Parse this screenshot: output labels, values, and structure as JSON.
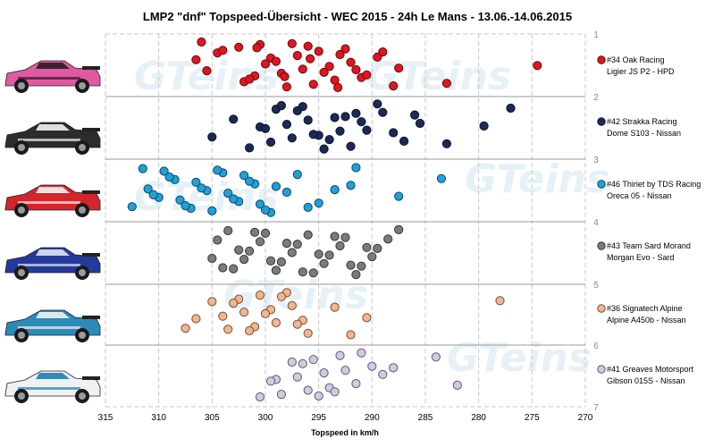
{
  "chart_data": {
    "type": "scatter",
    "title": "LMP2 \"dnf\" Topspeed-Übersicht  -  WEC 2015  -  24h Le Mans  -  13.06.-14.06.2015",
    "xlabel": "Topspeed in km/h",
    "xlim": [
      315,
      270
    ],
    "x_ticks": [
      315,
      310,
      305,
      300,
      295,
      290,
      285,
      280,
      275,
      270
    ],
    "row_ticks": [
      "1",
      "2",
      "3",
      "4",
      "5",
      "6",
      "7"
    ],
    "grid": "horizontal and vertical",
    "legend_position": "right",
    "watermark": "GTeins",
    "series": [
      {
        "name": "#34 Oak Racing",
        "car": "Ligier JS P2 - HPD",
        "color": "#e0161f",
        "row": 1,
        "x": [
          302.5,
          301.0,
          299.5,
          298.0,
          296.5,
          295.0,
          293.5,
          292.0,
          300.5,
          298.5,
          297.0,
          295.5,
          294.0,
          292.5,
          291.0,
          306.5,
          306.0,
          305.5,
          304.5,
          302.0,
          300.0,
          296.0,
          290.5,
          289.5,
          288.0,
          287.5,
          304.0,
          301.5,
          299.0,
          297.5,
          294.5,
          293.0,
          283.0,
          274.5,
          300.8,
          298.2,
          295.8,
          293.2,
          291.5,
          289.0
        ]
      },
      {
        "name": "#42 Strakka Racing",
        "car": "Dome S103 - Nissan",
        "color": "#1b2a56",
        "row": 2,
        "x": [
          300.5,
          299.0,
          297.5,
          296.0,
          294.5,
          293.0,
          291.5,
          299.5,
          298.0,
          296.5,
          295.0,
          293.5,
          292.0,
          300.0,
          297.0,
          294.0,
          291.0,
          289.5,
          288.0,
          286.0,
          283.0,
          279.5,
          277.0,
          305.0,
          303.0,
          301.5,
          290.5,
          289.0,
          287.0,
          285.5,
          298.5,
          295.5,
          292.5
        ]
      },
      {
        "name": "#46 Thiriet by TDS Racing",
        "car": "Oreca 05 - Nissan",
        "color": "#1fa0db",
        "row": 3,
        "x": [
          312.5,
          311.0,
          309.5,
          308.0,
          306.5,
          305.0,
          303.5,
          302.0,
          300.5,
          299.0,
          311.5,
          310.0,
          308.5,
          307.0,
          305.5,
          304.0,
          302.5,
          301.0,
          299.5,
          310.5,
          309.0,
          307.5,
          306.0,
          304.5,
          303.0,
          301.5,
          300.0,
          298.0,
          297.0,
          295.0,
          292.0,
          291.5,
          287.5,
          283.5,
          296.0,
          293.5
        ]
      },
      {
        "name": "#43 Team Sard Morand",
        "car": "Morgan Evo - Sard",
        "color": "#7b7b7b",
        "row": 4,
        "x": [
          304.5,
          303.0,
          301.5,
          300.0,
          298.5,
          297.0,
          295.5,
          294.0,
          292.5,
          291.0,
          289.5,
          303.5,
          302.0,
          300.5,
          299.0,
          297.5,
          296.0,
          294.5,
          293.0,
          291.5,
          290.0,
          288.5,
          304.0,
          302.5,
          301.0,
          299.5,
          298.0,
          296.5,
          295.0,
          293.5,
          292.0,
          290.5,
          287.5,
          305.0
        ]
      },
      {
        "name": "#36 Signatech Alpine",
        "car": "Alpine A450b - Nissan",
        "color": "#f4b48c",
        "row": 5,
        "x": [
          306.5,
          305.0,
          303.5,
          302.0,
          300.5,
          299.0,
          297.5,
          296.0,
          304.0,
          302.5,
          301.0,
          299.5,
          298.0,
          296.5,
          303.0,
          301.5,
          300.0,
          298.5,
          297.0,
          293.5,
          292.0,
          290.5,
          278.0,
          307.5
        ]
      },
      {
        "name": "#41 Greaves Motorsport",
        "car": "Gibson 015S - Nissan",
        "color": "#d3c9e2",
        "row": 6,
        "x": [
          300.5,
          299.0,
          297.5,
          296.0,
          294.5,
          293.0,
          291.5,
          290.0,
          298.5,
          297.0,
          295.5,
          294.0,
          292.5,
          291.0,
          299.5,
          296.5,
          293.5,
          289.0,
          284.0,
          282.0,
          288.0,
          295.0
        ]
      }
    ]
  }
}
